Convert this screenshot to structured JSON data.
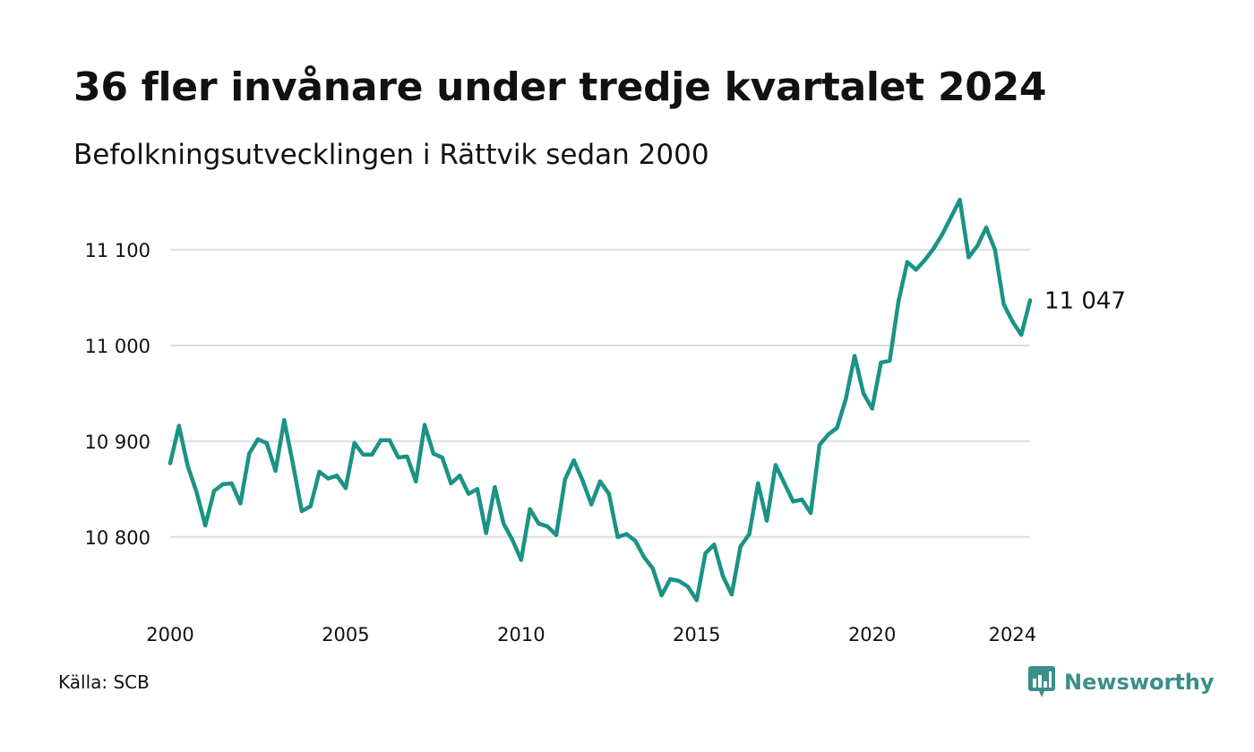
{
  "header": {
    "title": "36 fler invånare under tredje kvartalet 2024",
    "subtitle": "Befolkningsutvecklingen i Rättvik sedan 2000"
  },
  "footer": {
    "source": "Källa: SCB",
    "brand": "Newsworthy",
    "brand_icon": "newsworthy-logo-icon",
    "brand_color": "#3a8f8b"
  },
  "chart_data": {
    "type": "line",
    "title": "36 fler invånare under tredje kvartalet 2024",
    "subtitle": "Befolkningsutvecklingen i Rättvik sedan 2000",
    "xlabel": "",
    "ylabel": "",
    "x_ticks": [
      "2000",
      "2005",
      "2010",
      "2015",
      "2020",
      "2024"
    ],
    "y_ticks": [
      "10 800",
      "10 900",
      "11 000",
      "11 100"
    ],
    "xlim": [
      2000.0,
      2024.5
    ],
    "ylim": [
      10725,
      11155
    ],
    "grid": "horizontal",
    "line_color": "#1a9385",
    "end_label": "11 047",
    "series": [
      {
        "x": [
          2000.0,
          2000.25,
          2000.5,
          2000.75,
          2001.0,
          2001.25,
          2001.5,
          2001.75,
          2002.0,
          2002.25,
          2002.5,
          2002.75,
          2003.0,
          2003.25,
          2003.5,
          2003.75,
          2004.0,
          2004.25,
          2004.5,
          2004.75,
          2005.0,
          2005.25,
          2005.5,
          2005.75,
          2006.0,
          2006.25,
          2006.5,
          2006.75,
          2007.0,
          2007.25,
          2007.5,
          2007.75,
          2008.0,
          2008.25,
          2008.5,
          2008.75,
          2009.0,
          2009.25,
          2009.5,
          2009.75,
          2010.0,
          2010.25,
          2010.5,
          2010.75,
          2011.0,
          2011.25,
          2011.5,
          2011.75,
          2012.0,
          2012.25,
          2012.5,
          2012.75,
          2013.0,
          2013.25,
          2013.5,
          2013.75,
          2014.0,
          2014.25,
          2014.5,
          2014.75,
          2015.0,
          2015.25,
          2015.5,
          2015.75,
          2016.0,
          2016.25,
          2016.5,
          2016.75,
          2017.0,
          2017.25,
          2017.5,
          2017.75,
          2018.0,
          2018.25,
          2018.5,
          2018.75,
          2019.0,
          2019.25,
          2019.5,
          2019.75,
          2020.0,
          2020.25,
          2020.5,
          2020.75,
          2021.0,
          2021.25,
          2021.5,
          2021.75,
          2022.0,
          2022.25,
          2022.5,
          2022.75,
          2023.0,
          2023.25,
          2023.5,
          2023.75,
          2024.0,
          2024.25,
          2024.5
        ],
        "values": [
          10877,
          10916,
          10874,
          10847,
          10812,
          10848,
          10855,
          10856,
          10835,
          10887,
          10902,
          10898,
          10869,
          10922,
          10876,
          10827,
          10832,
          10868,
          10861,
          10864,
          10851,
          10898,
          10886,
          10886,
          10901,
          10901,
          10883,
          10884,
          10858,
          10917,
          10887,
          10883,
          10856,
          10864,
          10845,
          10850,
          10804,
          10852,
          10814,
          10797,
          10776,
          10829,
          10814,
          10811,
          10802,
          10860,
          10880,
          10859,
          10834,
          10858,
          10845,
          10800,
          10803,
          10796,
          10779,
          10767,
          10739,
          10756,
          10754,
          10748,
          10734,
          10783,
          10792,
          10759,
          10740,
          10790,
          10803,
          10856,
          10817,
          10875,
          10856,
          10837,
          10839,
          10825,
          10896,
          10907,
          10914,
          10944,
          10989,
          10950,
          10934,
          10982,
          10984,
          11046,
          11087,
          11079,
          11089,
          11101,
          11116,
          11134,
          11152,
          11092,
          11104,
          11123,
          11100,
          11043,
          11025,
          11011,
          11047
        ]
      }
    ]
  }
}
